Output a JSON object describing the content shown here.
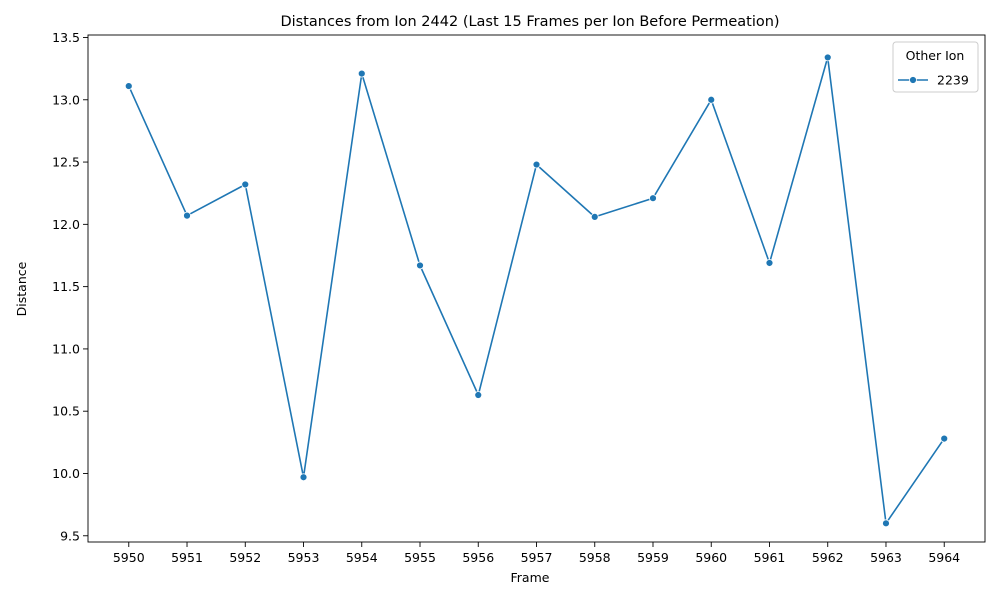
{
  "chart_data": {
    "type": "line",
    "title": "Distances from Ion 2442 (Last 15 Frames per Ion Before Permeation)",
    "xlabel": "Frame",
    "ylabel": "Distance",
    "x": [
      5950,
      5951,
      5952,
      5953,
      5954,
      5955,
      5956,
      5957,
      5958,
      5959,
      5960,
      5961,
      5962,
      5963,
      5964
    ],
    "x_tick_labels": [
      "5950",
      "5951",
      "5952",
      "5953",
      "5954",
      "5955",
      "5956",
      "5957",
      "5958",
      "5959",
      "5960",
      "5961",
      "5962",
      "5963",
      "5964"
    ],
    "y_ticks": [
      9.5,
      10.0,
      10.5,
      11.0,
      11.5,
      12.0,
      12.5,
      13.0,
      13.5
    ],
    "y_tick_labels": [
      "9.5",
      "10.0",
      "10.5",
      "11.0",
      "11.5",
      "12.0",
      "12.5",
      "13.0",
      "13.5"
    ],
    "ylim": [
      9.45,
      13.52
    ],
    "xlim": [
      5949.3,
      5964.7
    ],
    "grid": false,
    "legend": {
      "title": "Other Ion",
      "placement": "top-right"
    },
    "series": [
      {
        "name": "2239",
        "color": "#1f77b4",
        "marker": "circle",
        "values": [
          13.11,
          12.07,
          12.32,
          9.97,
          13.21,
          11.67,
          10.63,
          12.48,
          12.06,
          12.21,
          13.0,
          11.69,
          13.34,
          9.6,
          10.28
        ]
      }
    ]
  }
}
